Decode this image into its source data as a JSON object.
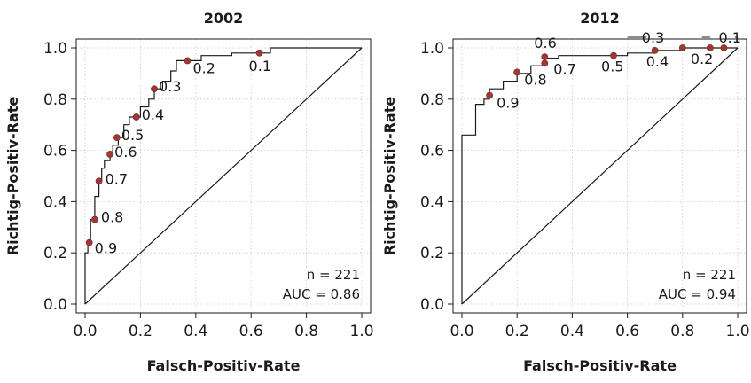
{
  "chart_data": [
    {
      "type": "line",
      "title": "2002",
      "xlabel": "Falsch-Positiv-Rate",
      "ylabel": "Richtig-Positiv-Rate",
      "xlim": [
        0,
        1
      ],
      "ylim": [
        0,
        1
      ],
      "xticks": [
        "0.0",
        "0.2",
        "0.4",
        "0.6",
        "0.8",
        "1.0"
      ],
      "yticks": [
        "0.0",
        "0.2",
        "0.4",
        "0.6",
        "0.8",
        "1.0"
      ],
      "grid": true,
      "roc_curve": [
        [
          0,
          0
        ],
        [
          0,
          0.2
        ],
        [
          0.01,
          0.2
        ],
        [
          0.01,
          0.24
        ],
        [
          0.02,
          0.24
        ],
        [
          0.02,
          0.33
        ],
        [
          0.035,
          0.33
        ],
        [
          0.035,
          0.42
        ],
        [
          0.05,
          0.42
        ],
        [
          0.05,
          0.48
        ],
        [
          0.06,
          0.48
        ],
        [
          0.06,
          0.53
        ],
        [
          0.07,
          0.53
        ],
        [
          0.07,
          0.56
        ],
        [
          0.09,
          0.56
        ],
        [
          0.09,
          0.59
        ],
        [
          0.1,
          0.59
        ],
        [
          0.1,
          0.62
        ],
        [
          0.12,
          0.62
        ],
        [
          0.12,
          0.65
        ],
        [
          0.14,
          0.65
        ],
        [
          0.14,
          0.7
        ],
        [
          0.16,
          0.7
        ],
        [
          0.16,
          0.73
        ],
        [
          0.2,
          0.73
        ],
        [
          0.2,
          0.77
        ],
        [
          0.23,
          0.77
        ],
        [
          0.23,
          0.8
        ],
        [
          0.25,
          0.8
        ],
        [
          0.25,
          0.84
        ],
        [
          0.28,
          0.84
        ],
        [
          0.28,
          0.87
        ],
        [
          0.31,
          0.87
        ],
        [
          0.31,
          0.91
        ],
        [
          0.33,
          0.91
        ],
        [
          0.33,
          0.95
        ],
        [
          0.42,
          0.95
        ],
        [
          0.42,
          0.97
        ],
        [
          0.53,
          0.97
        ],
        [
          0.53,
          0.98
        ],
        [
          0.67,
          0.98
        ],
        [
          0.67,
          1.0
        ],
        [
          1.0,
          1.0
        ]
      ],
      "points": [
        {
          "label": "0.9",
          "x": 0.015,
          "y": 0.24
        },
        {
          "label": "0.8",
          "x": 0.035,
          "y": 0.33
        },
        {
          "label": "0.7",
          "x": 0.05,
          "y": 0.48
        },
        {
          "label": "0.6",
          "x": 0.09,
          "y": 0.585
        },
        {
          "label": "0.5",
          "x": 0.115,
          "y": 0.65
        },
        {
          "label": "0.4",
          "x": 0.185,
          "y": 0.73
        },
        {
          "label": "0.3",
          "x": 0.25,
          "y": 0.84
        },
        {
          "label": "0.2",
          "x": 0.37,
          "y": 0.95
        },
        {
          "label": "0.1",
          "x": 0.63,
          "y": 0.98
        }
      ],
      "annotations": [
        "n = 221",
        "AUC = 0.86"
      ]
    },
    {
      "type": "line",
      "title": "2012",
      "xlabel": "Falsch-Positiv-Rate",
      "ylabel": "Richtig-Positiv-Rate",
      "xlim": [
        0,
        1
      ],
      "ylim": [
        0,
        1
      ],
      "xticks": [
        "0.0",
        "0.2",
        "0.4",
        "0.6",
        "0.8",
        "1.0"
      ],
      "yticks": [
        "0.0",
        "0.2",
        "0.4",
        "0.6",
        "0.8",
        "1.0"
      ],
      "grid": true,
      "roc_curve": [
        [
          0,
          0
        ],
        [
          0,
          0.66
        ],
        [
          0.05,
          0.66
        ],
        [
          0.05,
          0.72
        ],
        [
          0.05,
          0.78
        ],
        [
          0.08,
          0.78
        ],
        [
          0.08,
          0.8
        ],
        [
          0.1,
          0.8
        ],
        [
          0.1,
          0.84
        ],
        [
          0.15,
          0.84
        ],
        [
          0.15,
          0.87
        ],
        [
          0.2,
          0.87
        ],
        [
          0.2,
          0.9
        ],
        [
          0.25,
          0.9
        ],
        [
          0.25,
          0.93
        ],
        [
          0.3,
          0.93
        ],
        [
          0.3,
          0.96
        ],
        [
          0.35,
          0.96
        ],
        [
          0.35,
          0.97
        ],
        [
          0.6,
          0.97
        ],
        [
          0.6,
          0.98
        ],
        [
          0.7,
          0.98
        ],
        [
          0.7,
          0.99
        ],
        [
          0.8,
          0.99
        ],
        [
          0.8,
          1.0
        ],
        [
          1.0,
          1.0
        ]
      ],
      "points": [
        {
          "label": "0.9",
          "x": 0.1,
          "y": 0.815
        },
        {
          "label": "0.8",
          "x": 0.2,
          "y": 0.905
        },
        {
          "label": "0.7",
          "x": 0.3,
          "y": 0.94
        },
        {
          "label": "0.6",
          "x": 0.3,
          "y": 0.965
        },
        {
          "label": "0.5",
          "x": 0.55,
          "y": 0.97
        },
        {
          "label": "0.4",
          "x": 0.7,
          "y": 0.99
        },
        {
          "label": "0.3",
          "x": 0.8,
          "y": 1.0
        },
        {
          "label": "0.2",
          "x": 0.9,
          "y": 1.0
        },
        {
          "label": "0.1",
          "x": 0.95,
          "y": 1.0
        }
      ],
      "annotations": [
        "n = 221",
        "AUC = 0.94"
      ]
    }
  ]
}
